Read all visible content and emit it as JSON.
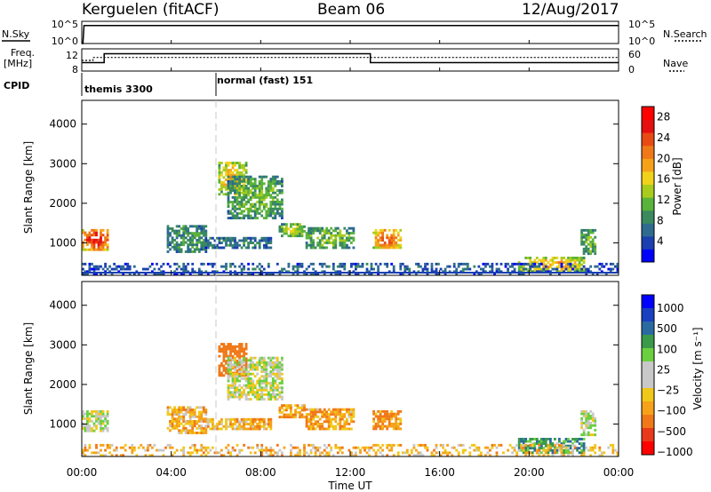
{
  "header": {
    "station": "Kerguelen (fitACF)",
    "beam": "Beam 06",
    "date": "12/Aug/2017"
  },
  "params": {
    "nsky_label": "N.Sky",
    "nsearch_label": "N.Search",
    "freq_label": "Freq.",
    "freq_unit": "[MHz]",
    "nave_label": "Nave",
    "cpid_label": "CPID",
    "n_ticks": [
      "10^5",
      "10^0"
    ],
    "freq_ticks": [
      "12",
      "8"
    ],
    "nave_ticks": [
      "60",
      "0"
    ],
    "cpid_segments": [
      {
        "start_hour": 0,
        "label": "themis 3300"
      },
      {
        "start_hour": 6,
        "label": "normal (fast) 151"
      }
    ]
  },
  "x_axis": {
    "label": "Time UT",
    "ticks": [
      "00:00",
      "04:00",
      "08:00",
      "12:00",
      "16:00",
      "20:00",
      "00:00"
    ],
    "range_hours": [
      0,
      24
    ]
  },
  "colors": {
    "power_scale": [
      "#0000ff",
      "#1a3fb0",
      "#2e6b8f",
      "#3a8a5e",
      "#5ab33a",
      "#a8cc1e",
      "#f0d21a",
      "#f5a21a",
      "#f07818",
      "#e84a14",
      "#e51010",
      "#ff0000"
    ],
    "velocity_scale": [
      "#ff0000",
      "#e83a1a",
      "#f07818",
      "#f5a21a",
      "#f0c81a",
      "#c8c8c8",
      "#c8c8c8",
      "#6ad040",
      "#3a9a4a",
      "#2a6aa0",
      "#1a3fc0",
      "#0000ff"
    ]
  },
  "chart_data": [
    {
      "type": "line",
      "panel": "N.Sky / N.Search",
      "ylabel": "N.Sky",
      "x_hours": [
        0,
        0.05,
        0.1,
        24
      ],
      "y_log10": [
        0,
        0,
        4.6,
        4.6
      ]
    },
    {
      "type": "line",
      "panel": "Freq. / Nave",
      "ylabel": "Freq. [MHz]",
      "freq_mhz": {
        "x_hours": [
          0,
          1.0,
          1.0,
          12.9,
          12.9,
          24
        ],
        "y": [
          9.5,
          9.5,
          11.5,
          11.5,
          9.5,
          9.5
        ]
      },
      "nave": {
        "x_hours": [
          0,
          0.5,
          0.5,
          24
        ],
        "y": [
          30,
          30,
          40,
          40
        ]
      },
      "ylim": [
        8,
        12
      ]
    },
    {
      "type": "heatmap",
      "panel": "power",
      "ylabel": "Slant Range [km]",
      "xlabel": "",
      "ylim": [
        180,
        4600
      ],
      "xlim": [
        0,
        24
      ],
      "yticks": [
        1000,
        2000,
        3000,
        4000
      ],
      "colorbar": {
        "label": "Power [dB]",
        "ticks": [
          4,
          8,
          12,
          16,
          20,
          24,
          28
        ],
        "range": [
          0,
          30
        ]
      },
      "regions": [
        {
          "t": [
            0.0,
            1.2
          ],
          "r": [
            800,
            1350
          ],
          "level": 26
        },
        {
          "t": [
            3.8,
            5.6
          ],
          "r": [
            750,
            1450
          ],
          "level": 10
        },
        {
          "t": [
            6.1,
            7.4
          ],
          "r": [
            2200,
            3050
          ],
          "level": 18
        },
        {
          "t": [
            6.5,
            9.0
          ],
          "r": [
            1600,
            2700
          ],
          "level": 12
        },
        {
          "t": [
            5.5,
            8.5
          ],
          "r": [
            850,
            1150
          ],
          "level": 8
        },
        {
          "t": [
            8.8,
            10.0
          ],
          "r": [
            1150,
            1500
          ],
          "level": 14
        },
        {
          "t": [
            10.0,
            12.2
          ],
          "r": [
            850,
            1400
          ],
          "level": 12
        },
        {
          "t": [
            13.0,
            14.3
          ],
          "r": [
            850,
            1350
          ],
          "level": 22
        },
        {
          "t": [
            19.5,
            22.5
          ],
          "r": [
            250,
            650
          ],
          "level": 18
        },
        {
          "t": [
            22.3,
            23.0
          ],
          "r": [
            700,
            1350
          ],
          "level": 12
        },
        {
          "t": [
            0.0,
            24.0
          ],
          "r": [
            180,
            500
          ],
          "level": 6
        }
      ]
    },
    {
      "type": "heatmap",
      "panel": "velocity",
      "ylabel": "Slant Range [km]",
      "xlabel": "Time UT",
      "ylim": [
        180,
        4600
      ],
      "xlim": [
        0,
        24
      ],
      "yticks": [
        1000,
        2000,
        3000,
        4000
      ],
      "colorbar": {
        "label": "Velocity [m s⁻¹]",
        "ticks": [
          "1000",
          "500",
          "100",
          "25",
          "−25",
          "−100",
          "−500",
          "−1000"
        ]
      },
      "regions": [
        {
          "t": [
            0.0,
            1.2
          ],
          "r": [
            800,
            1350
          ],
          "vel": 0
        },
        {
          "t": [
            3.8,
            5.6
          ],
          "r": [
            750,
            1450
          ],
          "vel": -60
        },
        {
          "t": [
            6.1,
            7.4
          ],
          "r": [
            2200,
            3050
          ],
          "vel": -300
        },
        {
          "t": [
            6.5,
            9.0
          ],
          "r": [
            1600,
            2700
          ],
          "vel": 0
        },
        {
          "t": [
            5.5,
            8.5
          ],
          "r": [
            850,
            1150
          ],
          "vel": -60
        },
        {
          "t": [
            8.8,
            10.0
          ],
          "r": [
            1150,
            1500
          ],
          "vel": -80
        },
        {
          "t": [
            10.0,
            12.2
          ],
          "r": [
            850,
            1400
          ],
          "vel": -80
        },
        {
          "t": [
            13.0,
            14.3
          ],
          "r": [
            850,
            1350
          ],
          "vel": -100
        },
        {
          "t": [
            19.5,
            22.5
          ],
          "r": [
            250,
            650
          ],
          "vel": 80
        },
        {
          "t": [
            22.3,
            23.0
          ],
          "r": [
            700,
            1350
          ],
          "vel": 0
        },
        {
          "t": [
            0.0,
            24.0
          ],
          "r": [
            180,
            500
          ],
          "vel": -60
        }
      ]
    }
  ]
}
